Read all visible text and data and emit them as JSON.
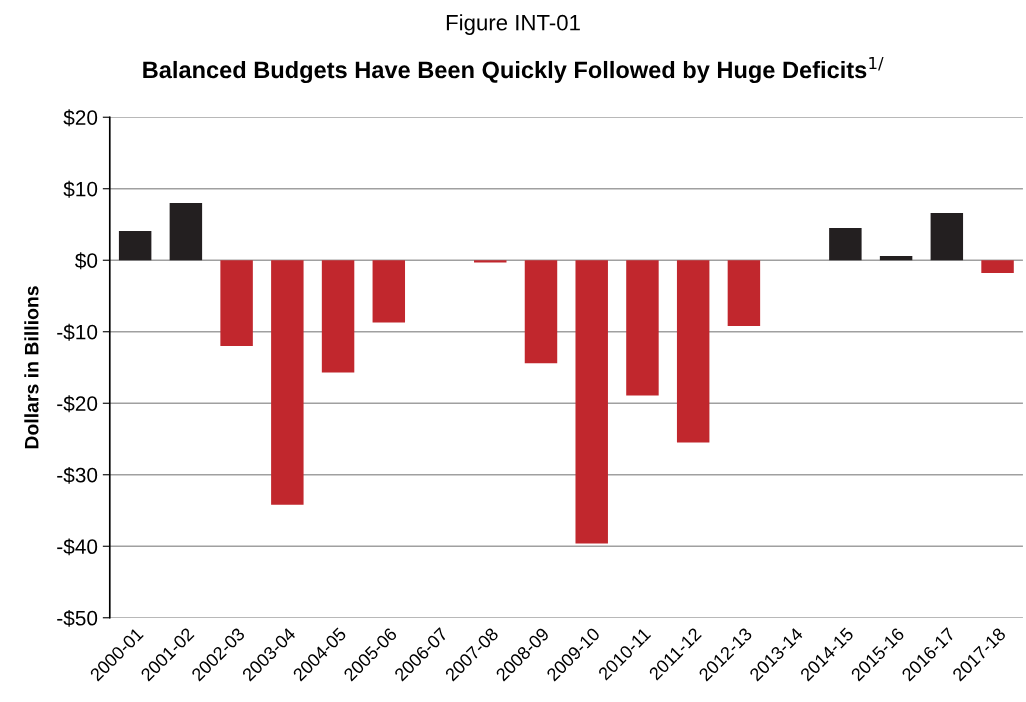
{
  "chart_data": {
    "type": "bar",
    "title": "Figure INT-01",
    "subtitle": "Balanced Budgets Have Been Quickly Followed by Huge Deficits$^{1/}$",
    "ylabel": "Dollars in Billions",
    "categories": [
      "2000-01",
      "2001-02",
      "2002-03",
      "2003-04",
      "2004-05",
      "2005-06",
      "2006-07",
      "2007-08",
      "2008-09",
      "2009-10",
      "2010-11",
      "2011-12",
      "2012-13",
      "2013-14",
      "2014-15",
      "2015-16",
      "2016-17",
      "2017-18"
    ],
    "values": [
      4.1,
      8.0,
      -12.0,
      -34.2,
      -15.7,
      -8.7,
      0,
      -0.3,
      -14.4,
      -39.6,
      -18.9,
      -25.5,
      -9.2,
      0,
      4.5,
      0.6,
      6.6,
      -1.8
    ],
    "colors": [
      "#231f20",
      "#231f20",
      "#c1272d",
      "#c1272d",
      "#c1272d",
      "#c1272d",
      "#c1272d",
      "#c1272d",
      "#c1272d",
      "#c1272d",
      "#c1272d",
      "#c1272d",
      "#c1272d",
      "#c1272d",
      "#231f20",
      "#231f20",
      "#231f20",
      "#c1272d"
    ],
    "ylim": [
      -50,
      20
    ],
    "yticks": [
      {
        "value": -50,
        "label": "-$50"
      },
      {
        "value": -40,
        "label": "-$40"
      },
      {
        "value": -30,
        "label": "-$30"
      },
      {
        "value": -20,
        "label": "-$20"
      },
      {
        "value": -10,
        "label": "-$10"
      },
      {
        "value": 0,
        "label": "$0"
      },
      {
        "value": 10,
        "label": "$10"
      },
      {
        "value": 20,
        "label": "$20"
      }
    ],
    "grid": "y",
    "legend": false
  }
}
